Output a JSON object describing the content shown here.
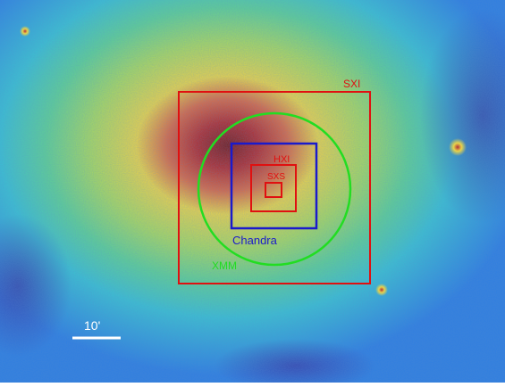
{
  "labels": {
    "sxi": "SXI",
    "hxi": "HXI",
    "sxs": "SXS",
    "chandra": "Chandra",
    "xmm": "XMM",
    "scale": "10'"
  },
  "colors": {
    "sxi": "#e01010",
    "hxi": "#e01010",
    "sxs": "#e01010",
    "chandra": "#1a1acc",
    "xmm": "#22dd22",
    "scalebar": "#ffffff",
    "background": "#2f7fe0",
    "halo_outer": "#3fc7c0",
    "halo_mid": "#8fdc6a",
    "halo_inner": "#e7e14a",
    "core": "#c43a3a",
    "core_center": "#7a2020"
  }
}
